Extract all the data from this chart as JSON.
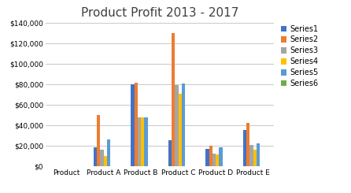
{
  "title": "Product Profit 2013 - 2017",
  "categories": [
    "Product",
    "Product A",
    "Product B",
    "Product C",
    "Product D",
    "Product E"
  ],
  "series": {
    "Series1": [
      0,
      18000,
      80000,
      25000,
      17000,
      35000
    ],
    "Series2": [
      0,
      50000,
      82000,
      130000,
      20000,
      42000
    ],
    "Series3": [
      0,
      16000,
      48000,
      79000,
      12000,
      21000
    ],
    "Series4": [
      0,
      10000,
      48000,
      71000,
      11000,
      16000
    ],
    "Series5": [
      0,
      26000,
      48000,
      81000,
      18000,
      22000
    ],
    "Series6": [
      0,
      0,
      0,
      0,
      0,
      0
    ]
  },
  "colors": {
    "Series1": "#4472C4",
    "Series2": "#ED7D31",
    "Series3": "#A5A5A5",
    "Series4": "#FFC000",
    "Series5": "#5B9BD5",
    "Series6": "#70AD47"
  },
  "ylim": [
    0,
    140000
  ],
  "yticks": [
    0,
    20000,
    40000,
    60000,
    80000,
    100000,
    120000,
    140000
  ],
  "background_color": "#FFFFFF",
  "plot_bg_color": "#FFFFFF",
  "grid_color": "#BFBFBF",
  "title_fontsize": 11,
  "legend_fontsize": 7,
  "tick_fontsize": 6.5,
  "bar_width": 0.09,
  "group_width": 0.65
}
